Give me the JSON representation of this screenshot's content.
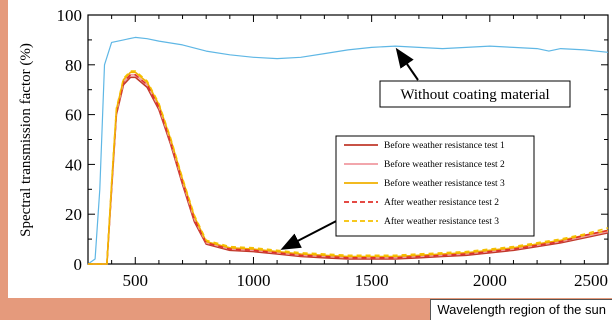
{
  "caption": "Wavelength region of the sun",
  "chart_data": {
    "type": "line",
    "xlabel": "",
    "ylabel": "Spectral transmission factor (%)",
    "xlim": [
      300,
      2500
    ],
    "ylim": [
      0,
      100
    ],
    "x_ticks": [
      500,
      1000,
      1500,
      2000,
      2500
    ],
    "y_ticks": [
      0,
      20,
      40,
      60,
      80,
      100
    ],
    "grid": false,
    "legend_position": "center-right",
    "annotation": "Without coating material",
    "colors": {
      "without_coating": "#5fb7e5",
      "before_test_1": "#c0392b",
      "before_test_2": "#f19aa0",
      "before_test_3": "#f0b000",
      "after_test_2": "#e0302a",
      "after_test_3": "#f5c000"
    },
    "series": [
      {
        "name": "",
        "key": "without_coating",
        "style": "solid",
        "x": [
          300,
          330,
          350,
          370,
          400,
          450,
          500,
          550,
          600,
          700,
          800,
          900,
          1000,
          1100,
          1200,
          1300,
          1400,
          1500,
          1600,
          1700,
          1800,
          1900,
          2000,
          2100,
          2200,
          2250,
          2300,
          2400,
          2500
        ],
        "y": [
          0,
          2,
          30,
          80,
          89,
          90,
          91,
          90.5,
          89.5,
          88,
          85.5,
          84,
          83,
          82.5,
          83,
          84.5,
          86,
          87,
          87.5,
          87,
          86.5,
          87,
          87.5,
          87,
          86.5,
          85.5,
          86.5,
          86,
          85
        ]
      },
      {
        "name": "Before weather resistance test 1",
        "key": "before_test_1",
        "style": "solid",
        "x": [
          300,
          380,
          400,
          420,
          450,
          480,
          500,
          550,
          600,
          650,
          700,
          750,
          800,
          900,
          1000,
          1100,
          1200,
          1300,
          1400,
          1500,
          1600,
          1700,
          1800,
          1900,
          2000,
          2100,
          2200,
          2300,
          2400,
          2500
        ],
        "y": [
          0,
          0,
          30,
          60,
          72,
          75,
          75,
          71,
          62,
          48,
          32,
          17,
          8,
          5.5,
          5,
          4,
          3,
          2.5,
          2,
          2,
          2,
          2.5,
          3,
          3.5,
          4.5,
          5.5,
          7,
          8.5,
          10.5,
          12.5
        ]
      },
      {
        "name": "Before weather resistance test 2",
        "key": "before_test_2",
        "style": "solid",
        "x": [
          300,
          380,
          400,
          420,
          450,
          480,
          500,
          550,
          600,
          650,
          700,
          750,
          800,
          900,
          1000,
          1100,
          1200,
          1300,
          1400,
          1500,
          1600,
          1700,
          1800,
          1900,
          2000,
          2100,
          2200,
          2300,
          2400,
          2500
        ],
        "y": [
          0,
          0,
          31,
          61,
          73,
          76,
          76,
          72,
          63,
          49,
          33,
          18,
          8.5,
          6,
          5.5,
          4.5,
          3.5,
          3,
          2.5,
          2.5,
          2.5,
          3,
          3.5,
          4,
          5,
          6,
          7.5,
          9,
          11,
          13
        ]
      },
      {
        "name": "Before weather resistance test 3",
        "key": "before_test_3",
        "style": "solid",
        "x": [
          300,
          380,
          400,
          420,
          450,
          480,
          500,
          550,
          600,
          650,
          700,
          750,
          800,
          900,
          1000,
          1100,
          1200,
          1300,
          1400,
          1500,
          1600,
          1700,
          1800,
          1900,
          2000,
          2100,
          2200,
          2300,
          2400,
          2500
        ],
        "y": [
          0,
          0,
          32,
          62,
          74,
          77,
          77,
          73,
          64,
          50,
          34,
          19,
          9,
          6.5,
          6,
          5,
          4,
          3.5,
          3,
          3,
          3,
          3.5,
          4,
          4.5,
          5.5,
          6.5,
          8,
          9.5,
          11.5,
          13.5
        ]
      },
      {
        "name": "After weather resistance test 2",
        "key": "after_test_2",
        "style": "dashed",
        "x": [
          300,
          380,
          400,
          420,
          450,
          480,
          500,
          550,
          600,
          650,
          700,
          750,
          800,
          900,
          1000,
          1100,
          1200,
          1300,
          1400,
          1500,
          1600,
          1700,
          1800,
          1900,
          2000,
          2100,
          2200,
          2300,
          2400,
          2500
        ],
        "y": [
          0,
          0,
          31,
          61,
          73,
          76,
          76,
          72,
          63,
          49,
          33,
          18,
          8.5,
          6,
          5.5,
          4.5,
          3.5,
          3,
          2.5,
          2.5,
          2.5,
          3,
          3.5,
          4,
          5,
          6,
          7.5,
          9,
          11.5,
          13.5
        ]
      },
      {
        "name": "After weather resistance test 3",
        "key": "after_test_3",
        "style": "dashed",
        "x": [
          300,
          380,
          400,
          420,
          450,
          480,
          500,
          550,
          600,
          650,
          700,
          750,
          800,
          900,
          1000,
          1100,
          1200,
          1300,
          1400,
          1500,
          1600,
          1700,
          1800,
          1900,
          2000,
          2100,
          2200,
          2300,
          2400,
          2500
        ],
        "y": [
          0,
          0,
          32.5,
          62.5,
          74.5,
          77.5,
          77.5,
          73.5,
          64.5,
          50.5,
          34.5,
          19.5,
          9.5,
          7,
          6.5,
          5.5,
          4.5,
          4,
          3.5,
          3.5,
          3.5,
          4,
          4.5,
          5,
          6,
          7,
          8.5,
          10,
          12,
          14.5
        ]
      }
    ]
  }
}
